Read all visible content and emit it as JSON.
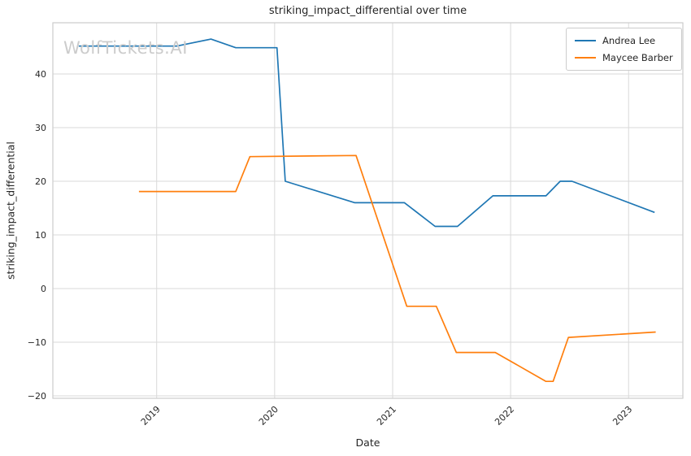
{
  "style": {
    "background": "#ffffff",
    "grid_color": "#d9d9d9",
    "spine_color": "#cccccc",
    "text_color": "#262626",
    "watermark_color": "#cccccc"
  },
  "chart_data": {
    "type": "line",
    "title": "striking_impact_differential over time",
    "xlabel": "Date",
    "ylabel": "striking_impact_differential",
    "watermark": "WolfTickets.AI",
    "grid": true,
    "legend_position": "upper right",
    "x_tick_labels": [
      "2019",
      "2020",
      "2021",
      "2022",
      "2023"
    ],
    "x_tick_values": [
      2019,
      2020,
      2021,
      2022,
      2023
    ],
    "y_tick_values": [
      -20,
      -10,
      0,
      10,
      20,
      30,
      40
    ],
    "xlim": [
      2018.12,
      2023.46
    ],
    "ylim": [
      -20.45,
      49.55
    ],
    "series": [
      {
        "name": "Andrea Lee",
        "color": "#1f77b4",
        "x": [
          2018.34,
          2019.17,
          2019.46,
          2019.67,
          2020.02,
          2020.09,
          2020.68,
          2021.1,
          2021.36,
          2021.55,
          2021.85,
          2022.3,
          2022.42,
          2022.52,
          2023.22
        ],
        "y": [
          45.2,
          45.2,
          46.5,
          44.9,
          44.9,
          20.0,
          16.0,
          16.0,
          11.6,
          11.6,
          17.3,
          17.3,
          20.0,
          20.0,
          14.2
        ]
      },
      {
        "name": "Maycee Barber",
        "color": "#ff7f0e",
        "x": [
          2018.85,
          2019.67,
          2019.79,
          2020.69,
          2021.12,
          2021.37,
          2021.54,
          2021.87,
          2022.3,
          2022.36,
          2022.49,
          2023.23
        ],
        "y": [
          18.1,
          18.1,
          24.6,
          24.8,
          -3.3,
          -3.3,
          -11.9,
          -11.9,
          -17.3,
          -17.3,
          -9.1,
          -8.1
        ]
      }
    ]
  }
}
